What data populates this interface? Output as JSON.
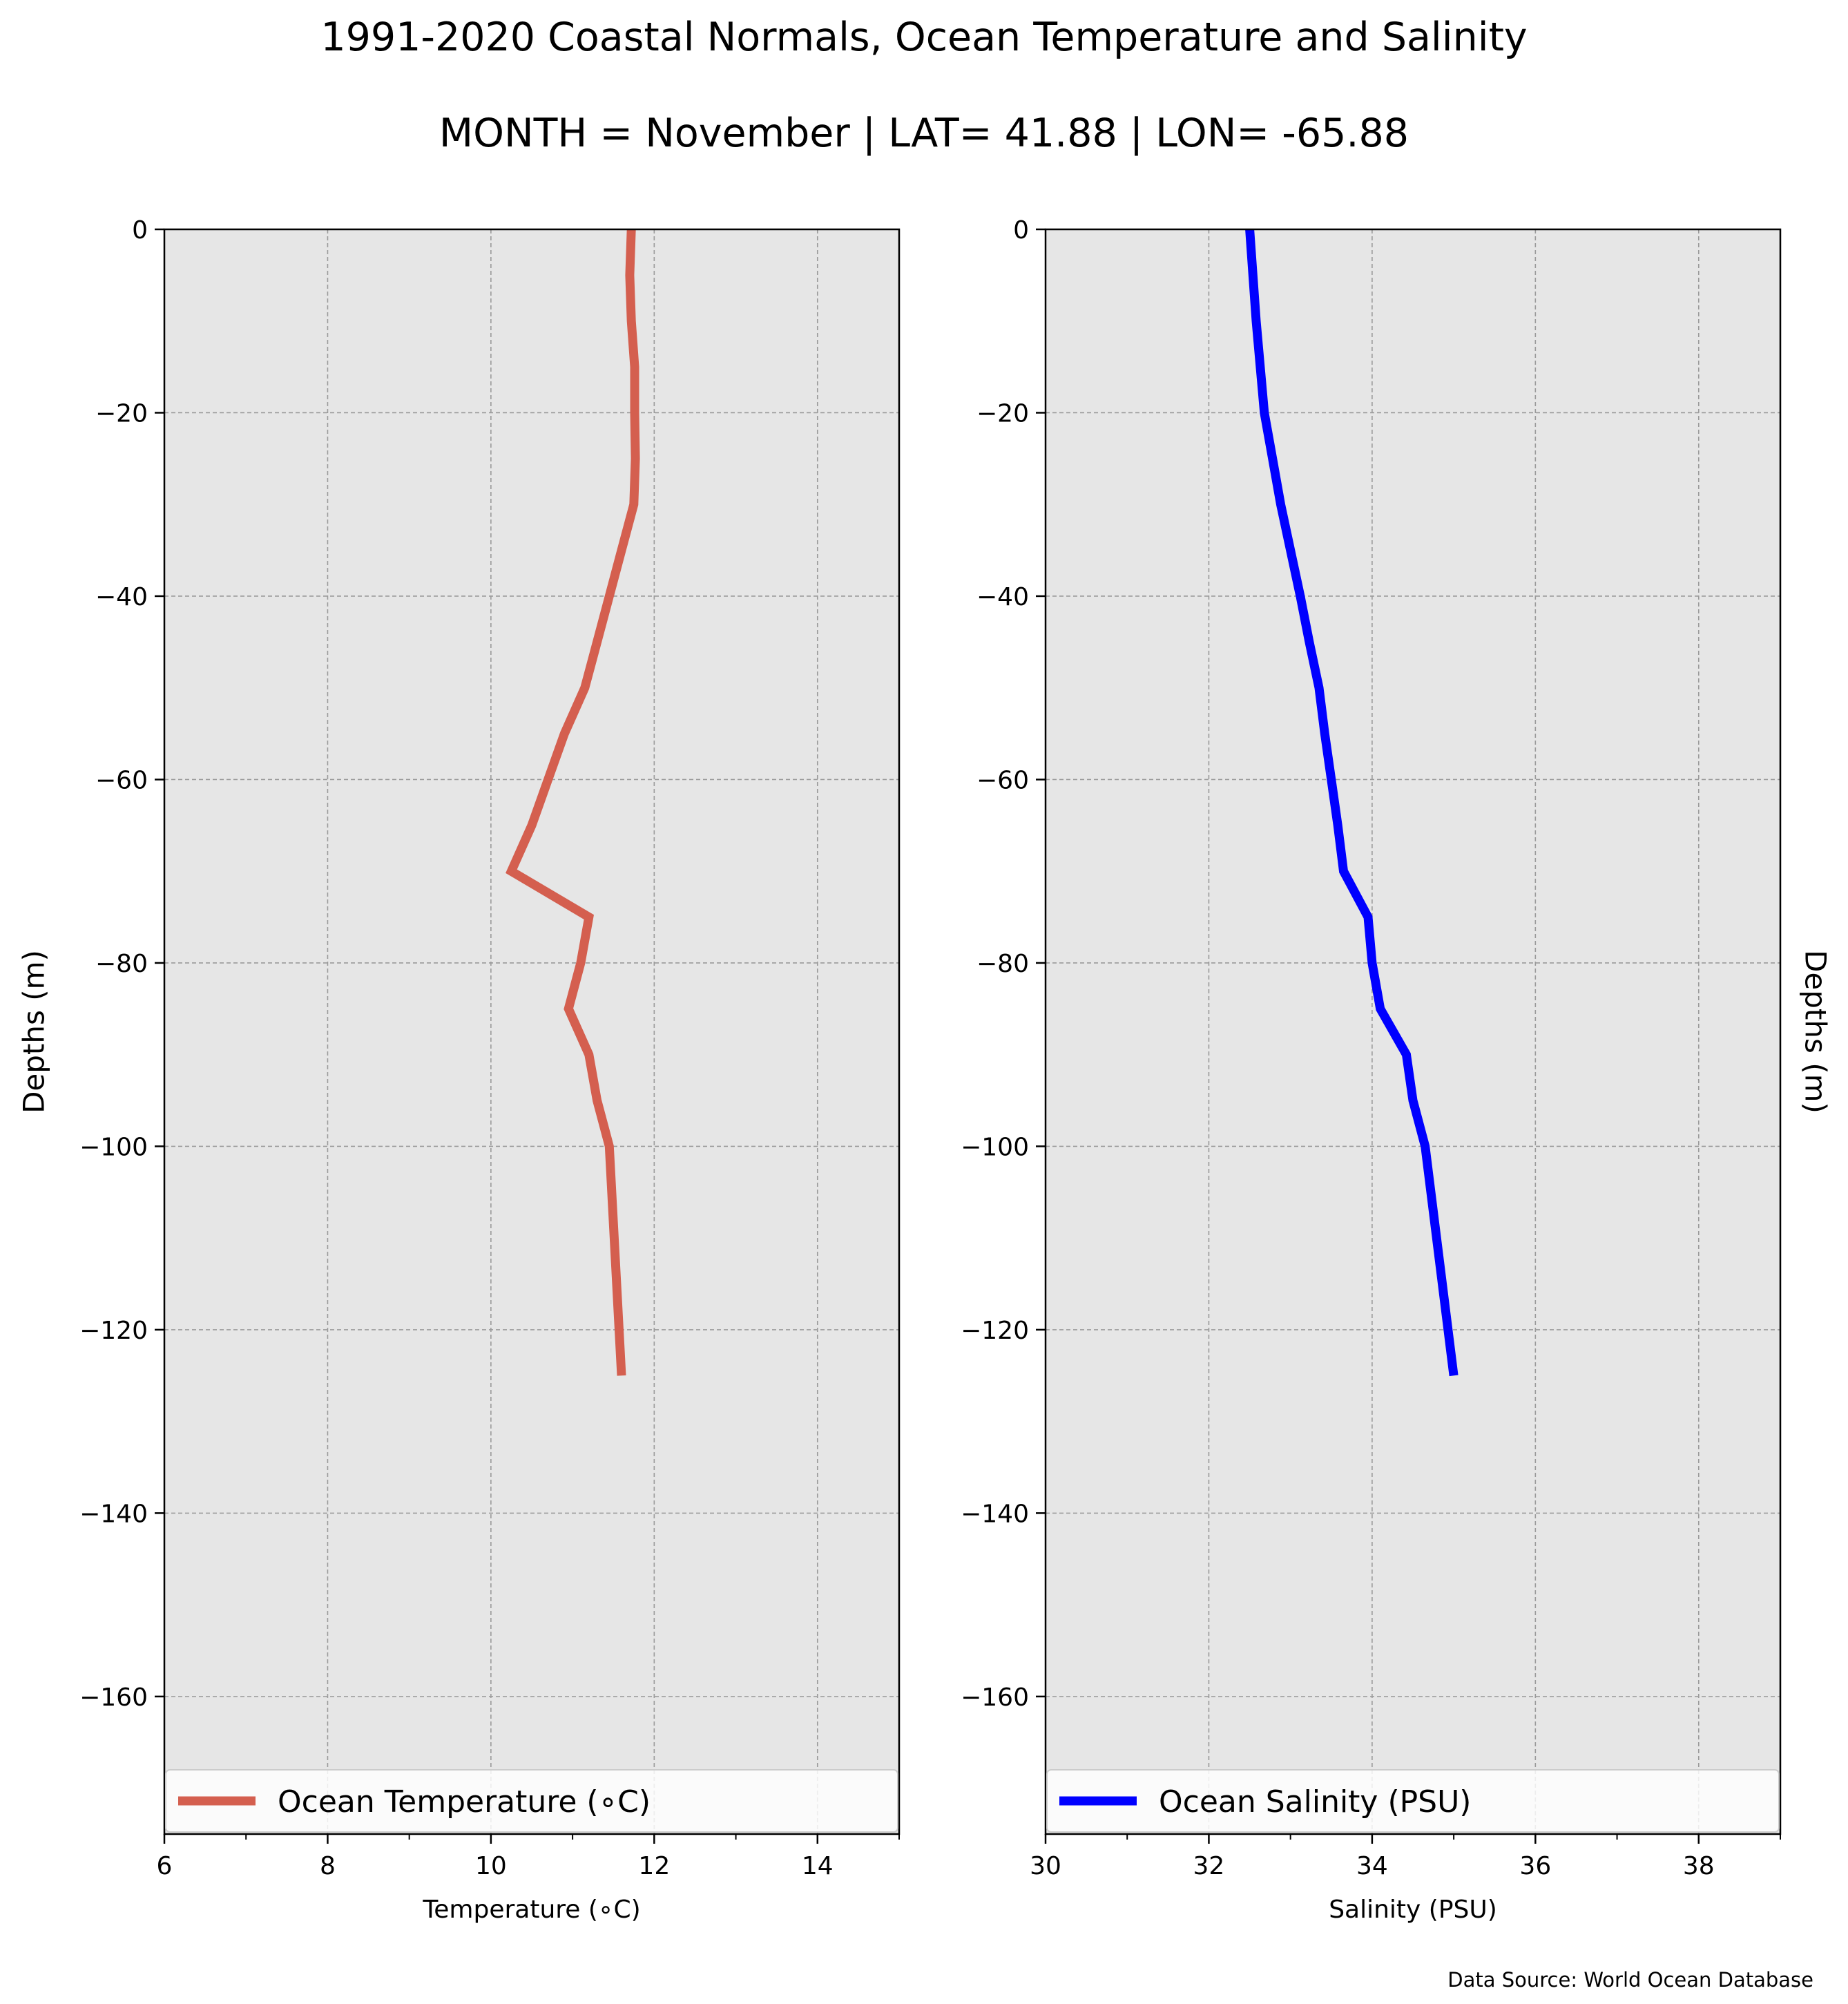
{
  "figure": {
    "title": "1991-2020 Coastal Normals, Ocean Temperature and Salinity",
    "subtitle": "MONTH = November | LAT= 41.88 | LON= -65.88",
    "source": "Data Source: World Ocean Database"
  },
  "chart_data": [
    {
      "type": "line",
      "orientation": "vertical-profile",
      "xlabel": "Temperature (∘C)",
      "ylabel": "Depths (m)",
      "xlim": [
        6,
        15
      ],
      "ylim": [
        -175,
        0
      ],
      "xticks": [
        6,
        8,
        10,
        12,
        14
      ],
      "yticks": [
        0,
        -20,
        -40,
        -60,
        -80,
        -100,
        -120,
        -140,
        -160
      ],
      "grid": true,
      "legend": "bottom",
      "color": "#d45f4f",
      "series": [
        {
          "name": "Ocean Temperature (∘C)",
          "depth": [
            0,
            -5,
            -10,
            -15,
            -20,
            -25,
            -30,
            -35,
            -40,
            -45,
            -50,
            -55,
            -60,
            -65,
            -70,
            -75,
            -80,
            -85,
            -90,
            -95,
            -100,
            -125
          ],
          "values": [
            11.72,
            11.7,
            11.72,
            11.76,
            11.76,
            11.77,
            11.75,
            11.6,
            11.45,
            11.3,
            11.15,
            10.9,
            10.7,
            10.5,
            10.25,
            11.2,
            11.1,
            10.95,
            11.2,
            11.3,
            11.45,
            11.6
          ]
        }
      ]
    },
    {
      "type": "line",
      "orientation": "vertical-profile",
      "xlabel": "Salinity (PSU)",
      "ylabel": "Depths (m)",
      "xlim": [
        30,
        39
      ],
      "ylim": [
        -175,
        0
      ],
      "xticks": [
        30,
        32,
        34,
        36,
        38
      ],
      "yticks": [
        0,
        -20,
        -40,
        -60,
        -80,
        -100,
        -120,
        -140,
        -160
      ],
      "grid": true,
      "legend": "bottom",
      "color": "#0000ff",
      "series": [
        {
          "name": "Ocean Salinity (PSU)",
          "depth": [
            0,
            -10,
            -20,
            -25,
            -30,
            -35,
            -40,
            -45,
            -50,
            -55,
            -60,
            -65,
            -70,
            -75,
            -80,
            -85,
            -90,
            -95,
            -100,
            -125
          ],
          "values": [
            32.5,
            32.58,
            32.68,
            32.78,
            32.88,
            33.0,
            33.12,
            33.23,
            33.35,
            33.42,
            33.5,
            33.58,
            33.65,
            33.95,
            34.0,
            34.1,
            34.42,
            34.5,
            34.65,
            35.0
          ]
        }
      ]
    }
  ]
}
